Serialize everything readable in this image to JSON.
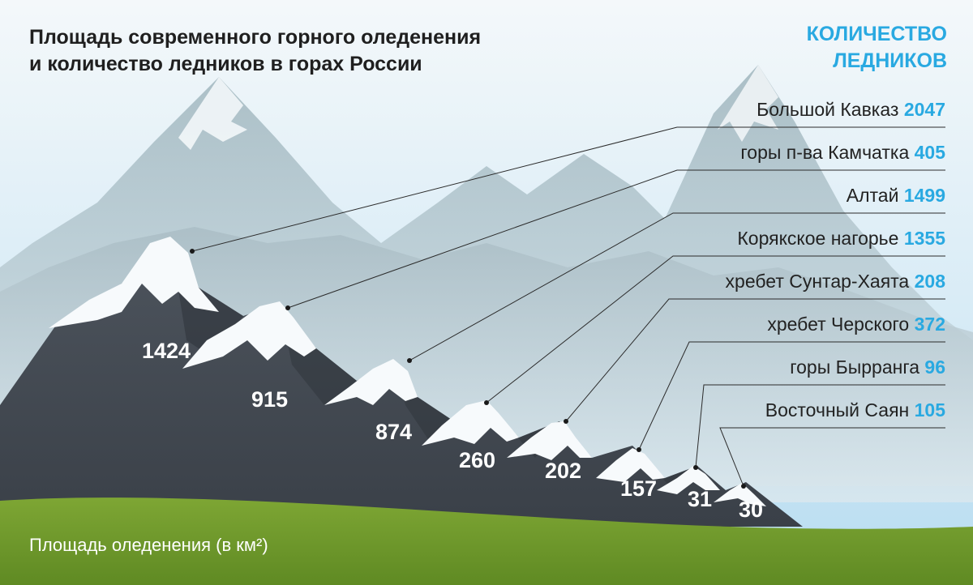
{
  "header": {
    "title_line1": "Площадь современного горного оледенения",
    "title_line2": "и количество ледников в горах России",
    "count_label_line1": "КОЛИЧЕСТВО",
    "count_label_line2": "ЛЕДНИКОВ"
  },
  "footer": {
    "area_label": "Площадь оледенения (в км²)"
  },
  "colors": {
    "accent": "#29a9e1",
    "label_text": "#222222",
    "peak_number": "#ffffff",
    "grass": "#6f9a2a"
  },
  "chart_data": {
    "type": "bar",
    "title": "Площадь современного горного оледенения и количество ледников в горах России",
    "categories": [
      "Большой Кавказ",
      "горы п-ва Камчатка",
      "Алтай",
      "Корякское нагорье",
      "хребет Сунтар-Хаята",
      "хребет Черского",
      "горы Бырранга",
      "Восточный Саян"
    ],
    "series": [
      {
        "name": "Площадь оледенения (в км²)",
        "values": [
          1424,
          915,
          874,
          260,
          202,
          157,
          31,
          30
        ]
      },
      {
        "name": "КОЛИЧЕСТВО ЛЕДНИКОВ",
        "values": [
          2047,
          405,
          1499,
          1355,
          208,
          372,
          96,
          105
        ]
      }
    ]
  }
}
